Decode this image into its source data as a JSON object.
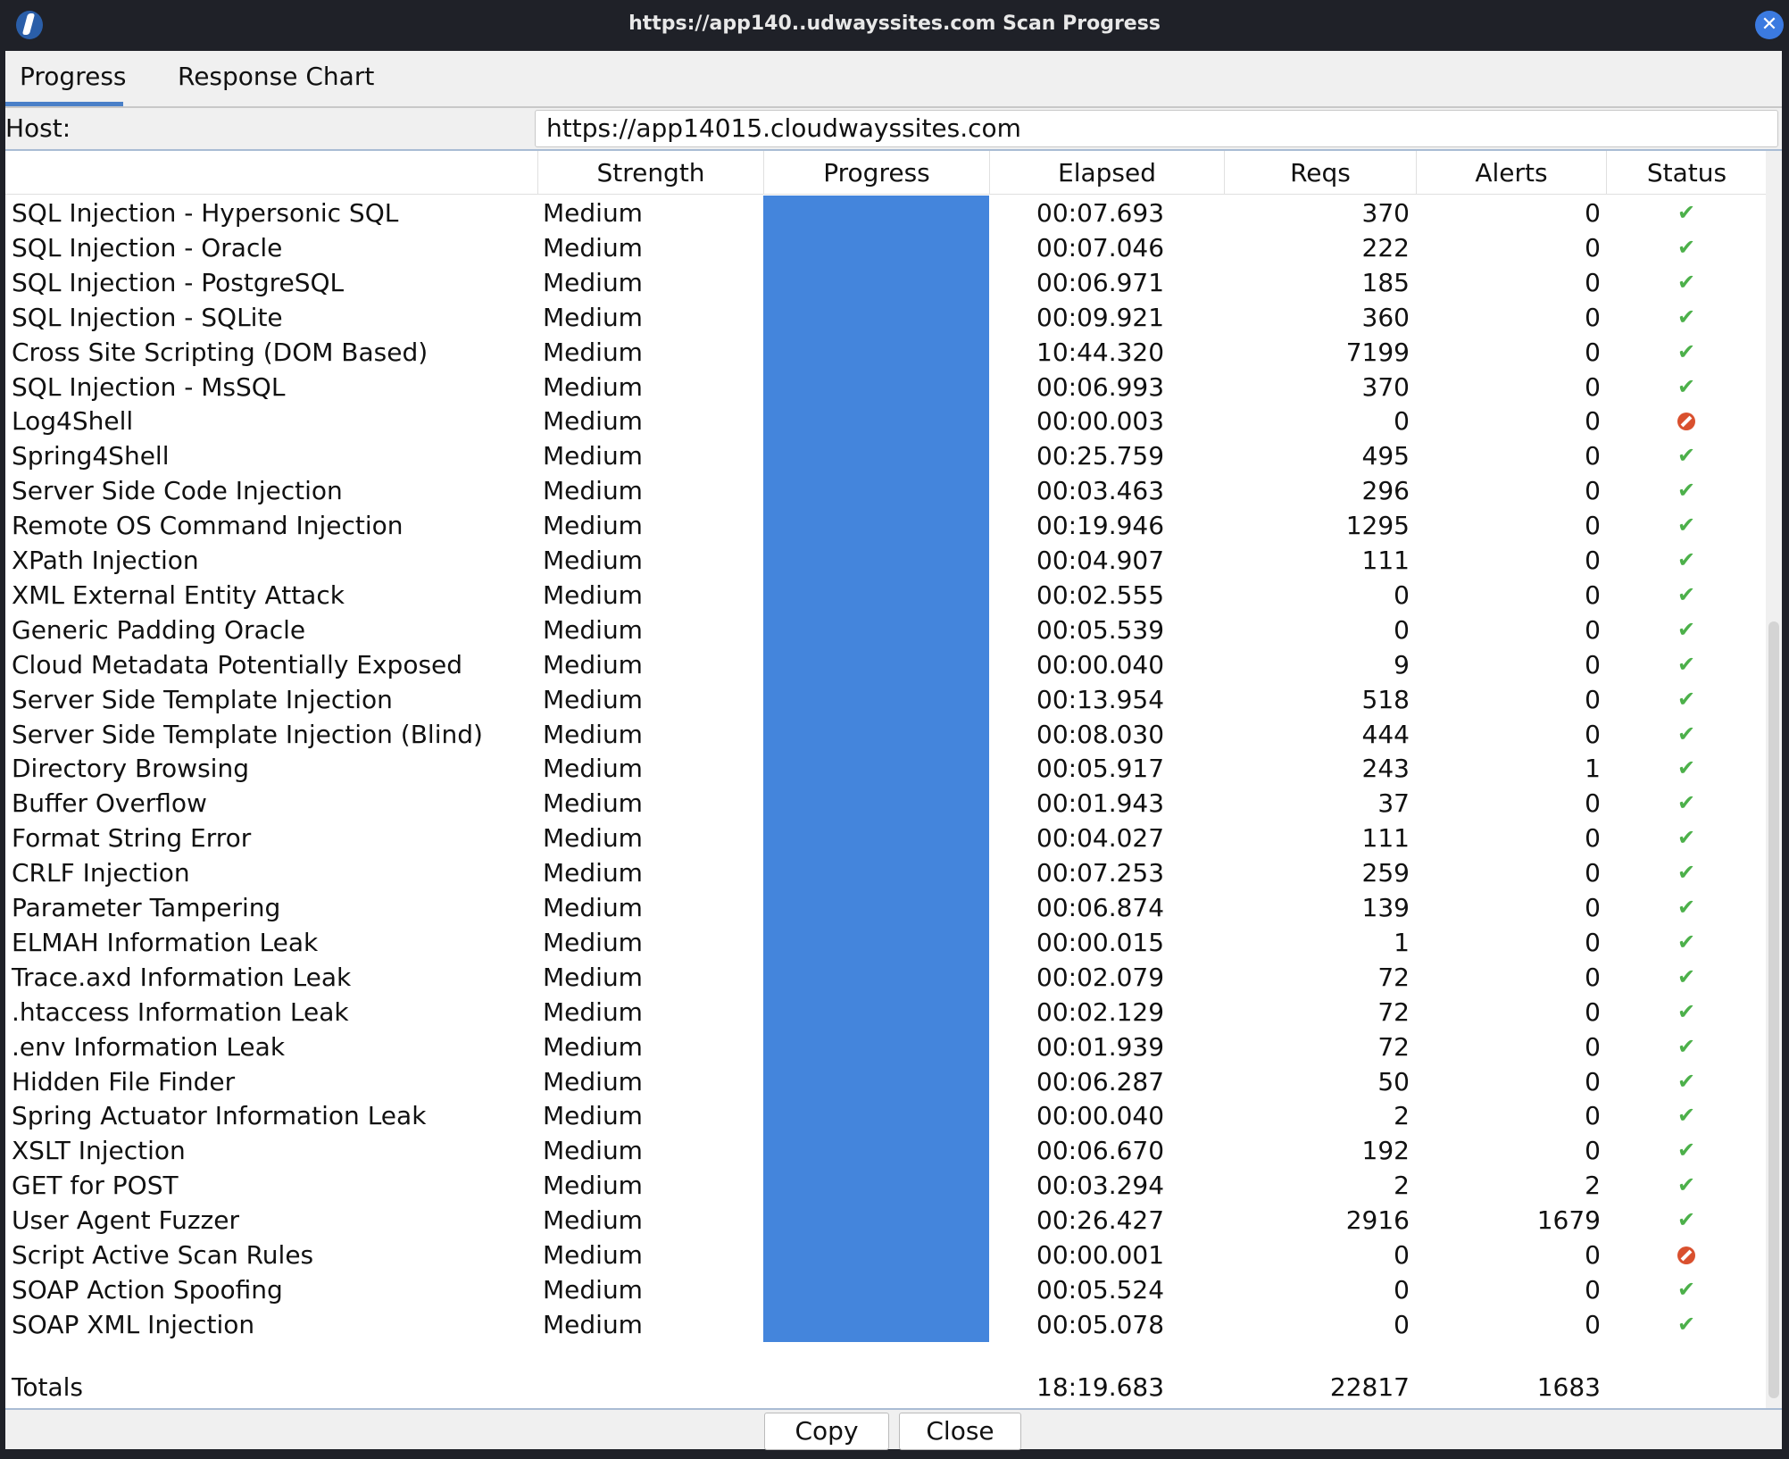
{
  "window": {
    "title": "https://app140..udwayssites.com Scan Progress"
  },
  "tabs": [
    {
      "label": "Progress",
      "active": true
    },
    {
      "label": "Response Chart",
      "active": false
    }
  ],
  "host": {
    "label": "Host:",
    "value": "https://app14015.cloudwayssites.com"
  },
  "columns": [
    "",
    "Strength",
    "Progress",
    "Elapsed",
    "Reqs",
    "Alerts",
    "Status"
  ],
  "rows": [
    {
      "name": "SQL Injection - Hypersonic SQL",
      "strength": "Medium",
      "progress": 100,
      "elapsed": "00:07.693",
      "reqs": "370",
      "alerts": "0",
      "status": "ok"
    },
    {
      "name": "SQL Injection - Oracle",
      "strength": "Medium",
      "progress": 100,
      "elapsed": "00:07.046",
      "reqs": "222",
      "alerts": "0",
      "status": "ok"
    },
    {
      "name": "SQL Injection - PostgreSQL",
      "strength": "Medium",
      "progress": 100,
      "elapsed": "00:06.971",
      "reqs": "185",
      "alerts": "0",
      "status": "ok"
    },
    {
      "name": "SQL Injection - SQLite",
      "strength": "Medium",
      "progress": 100,
      "elapsed": "00:09.921",
      "reqs": "360",
      "alerts": "0",
      "status": "ok"
    },
    {
      "name": "Cross Site Scripting (DOM Based)",
      "strength": "Medium",
      "progress": 100,
      "elapsed": "10:44.320",
      "reqs": "7199",
      "alerts": "0",
      "status": "ok"
    },
    {
      "name": "SQL Injection - MsSQL",
      "strength": "Medium",
      "progress": 100,
      "elapsed": "00:06.993",
      "reqs": "370",
      "alerts": "0",
      "status": "ok"
    },
    {
      "name": "Log4Shell",
      "strength": "Medium",
      "progress": 100,
      "elapsed": "00:00.003",
      "reqs": "0",
      "alerts": "0",
      "status": "skipped"
    },
    {
      "name": "Spring4Shell",
      "strength": "Medium",
      "progress": 100,
      "elapsed": "00:25.759",
      "reqs": "495",
      "alerts": "0",
      "status": "ok"
    },
    {
      "name": "Server Side Code Injection",
      "strength": "Medium",
      "progress": 100,
      "elapsed": "00:03.463",
      "reqs": "296",
      "alerts": "0",
      "status": "ok"
    },
    {
      "name": "Remote OS Command Injection",
      "strength": "Medium",
      "progress": 100,
      "elapsed": "00:19.946",
      "reqs": "1295",
      "alerts": "0",
      "status": "ok"
    },
    {
      "name": "XPath Injection",
      "strength": "Medium",
      "progress": 100,
      "elapsed": "00:04.907",
      "reqs": "111",
      "alerts": "0",
      "status": "ok"
    },
    {
      "name": "XML External Entity Attack",
      "strength": "Medium",
      "progress": 100,
      "elapsed": "00:02.555",
      "reqs": "0",
      "alerts": "0",
      "status": "ok"
    },
    {
      "name": "Generic Padding Oracle",
      "strength": "Medium",
      "progress": 100,
      "elapsed": "00:05.539",
      "reqs": "0",
      "alerts": "0",
      "status": "ok"
    },
    {
      "name": "Cloud Metadata Potentially Exposed",
      "strength": "Medium",
      "progress": 100,
      "elapsed": "00:00.040",
      "reqs": "9",
      "alerts": "0",
      "status": "ok"
    },
    {
      "name": "Server Side Template Injection",
      "strength": "Medium",
      "progress": 100,
      "elapsed": "00:13.954",
      "reqs": "518",
      "alerts": "0",
      "status": "ok"
    },
    {
      "name": "Server Side Template Injection (Blind)",
      "strength": "Medium",
      "progress": 100,
      "elapsed": "00:08.030",
      "reqs": "444",
      "alerts": "0",
      "status": "ok"
    },
    {
      "name": "Directory Browsing",
      "strength": "Medium",
      "progress": 100,
      "elapsed": "00:05.917",
      "reqs": "243",
      "alerts": "1",
      "status": "ok"
    },
    {
      "name": "Buffer Overflow",
      "strength": "Medium",
      "progress": 100,
      "elapsed": "00:01.943",
      "reqs": "37",
      "alerts": "0",
      "status": "ok"
    },
    {
      "name": "Format String Error",
      "strength": "Medium",
      "progress": 100,
      "elapsed": "00:04.027",
      "reqs": "111",
      "alerts": "0",
      "status": "ok"
    },
    {
      "name": "CRLF Injection",
      "strength": "Medium",
      "progress": 100,
      "elapsed": "00:07.253",
      "reqs": "259",
      "alerts": "0",
      "status": "ok"
    },
    {
      "name": "Parameter Tampering",
      "strength": "Medium",
      "progress": 100,
      "elapsed": "00:06.874",
      "reqs": "139",
      "alerts": "0",
      "status": "ok"
    },
    {
      "name": "ELMAH Information Leak",
      "strength": "Medium",
      "progress": 100,
      "elapsed": "00:00.015",
      "reqs": "1",
      "alerts": "0",
      "status": "ok"
    },
    {
      "name": "Trace.axd Information Leak",
      "strength": "Medium",
      "progress": 100,
      "elapsed": "00:02.079",
      "reqs": "72",
      "alerts": "0",
      "status": "ok"
    },
    {
      "name": ".htaccess Information Leak",
      "strength": "Medium",
      "progress": 100,
      "elapsed": "00:02.129",
      "reqs": "72",
      "alerts": "0",
      "status": "ok"
    },
    {
      "name": ".env Information Leak",
      "strength": "Medium",
      "progress": 100,
      "elapsed": "00:01.939",
      "reqs": "72",
      "alerts": "0",
      "status": "ok"
    },
    {
      "name": "Hidden File Finder",
      "strength": "Medium",
      "progress": 100,
      "elapsed": "00:06.287",
      "reqs": "50",
      "alerts": "0",
      "status": "ok"
    },
    {
      "name": "Spring Actuator Information Leak",
      "strength": "Medium",
      "progress": 100,
      "elapsed": "00:00.040",
      "reqs": "2",
      "alerts": "0",
      "status": "ok"
    },
    {
      "name": "XSLT Injection",
      "strength": "Medium",
      "progress": 100,
      "elapsed": "00:06.670",
      "reqs": "192",
      "alerts": "0",
      "status": "ok"
    },
    {
      "name": "GET for POST",
      "strength": "Medium",
      "progress": 100,
      "elapsed": "00:03.294",
      "reqs": "2",
      "alerts": "2",
      "status": "ok"
    },
    {
      "name": "User Agent Fuzzer",
      "strength": "Medium",
      "progress": 100,
      "elapsed": "00:26.427",
      "reqs": "2916",
      "alerts": "1679",
      "status": "ok"
    },
    {
      "name": "Script Active Scan Rules",
      "strength": "Medium",
      "progress": 100,
      "elapsed": "00:00.001",
      "reqs": "0",
      "alerts": "0",
      "status": "skipped"
    },
    {
      "name": "SOAP Action Spoofing",
      "strength": "Medium",
      "progress": 100,
      "elapsed": "00:05.524",
      "reqs": "0",
      "alerts": "0",
      "status": "ok"
    },
    {
      "name": "SOAP XML Injection",
      "strength": "Medium",
      "progress": 100,
      "elapsed": "00:05.078",
      "reqs": "0",
      "alerts": "0",
      "status": "ok"
    }
  ],
  "totals": {
    "label": "Totals",
    "elapsed": "18:19.683",
    "reqs": "22817",
    "alerts": "1683"
  },
  "buttons": {
    "copy": "Copy",
    "close": "Close"
  },
  "colors": {
    "progress": "#4485dc",
    "ok": "#4cb04a",
    "skipped": "#d9502e"
  },
  "icons": {
    "ok": "check-icon",
    "skipped": "prohibited-icon"
  }
}
